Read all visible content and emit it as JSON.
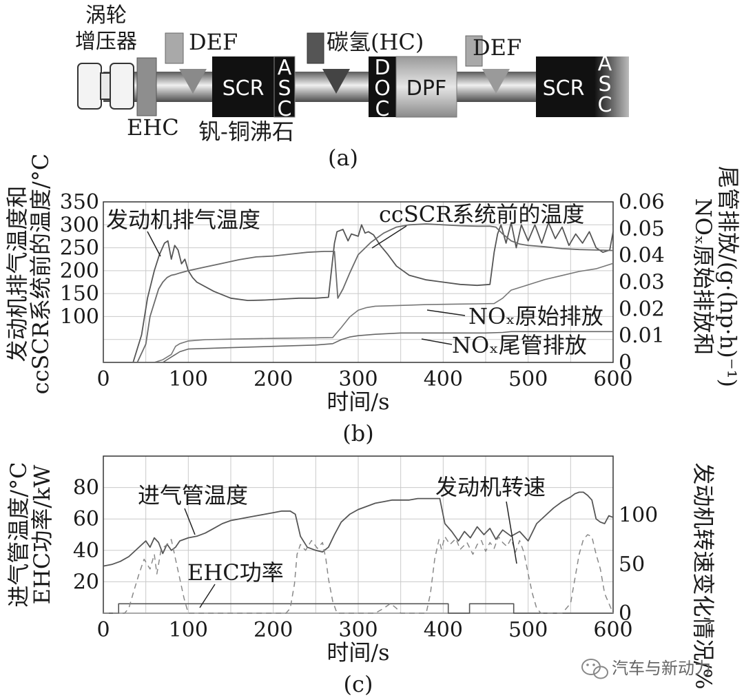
{
  "chart_data": [
    {
      "type": "diagram",
      "panel_label": "(a)",
      "labels": {
        "turbo": "涡轮\n增压器",
        "def1": "DEF",
        "hc": "碳氢(HC)",
        "def2": "DEF",
        "ehc": "EHC",
        "scr1": "SCR",
        "asc1": "ASC",
        "doc": "DOC",
        "dpf": "DPF",
        "scr2": "SCR",
        "asc2": "ASC",
        "catalyst": "钒-铜沸石"
      }
    },
    {
      "type": "line",
      "panel_label": "(b)",
      "xlabel": "时间/s",
      "ylabel_left": [
        "发动机排气温度和",
        "ccSCR系统前的温度/°C"
      ],
      "ylabel_right": [
        "NOₓ原始排放和",
        "尾管排放/(g·(hp·h)⁻¹)"
      ],
      "xlim": [
        0,
        600
      ],
      "ylim_left": [
        0,
        350
      ],
      "ylim_right": [
        0,
        0.06
      ],
      "xticks": [
        0,
        100,
        200,
        300,
        400,
        500,
        600
      ],
      "yticks_left": [
        100,
        150,
        200,
        250,
        300,
        350
      ],
      "yticks_right": [
        0,
        0.01,
        0.02,
        0.03,
        0.04,
        0.05,
        0.06
      ],
      "grid": true,
      "annotations": [
        "发动机排气温度",
        "ccSCR系统前的温度",
        "NOₓ原始排放",
        "NOₓ尾管排放"
      ],
      "series": [
        {
          "axis": "left",
          "x": [
            0,
            25,
            35,
            45,
            52,
            60,
            66,
            72,
            76,
            80,
            84,
            88,
            92,
            96,
            100,
            105,
            110,
            130,
            150,
            170,
            190,
            210,
            230,
            250,
            265,
            272,
            275,
            282,
            288,
            292,
            300,
            304,
            308,
            312,
            318,
            326,
            335,
            345,
            360,
            380,
            400,
            420,
            440,
            455,
            460,
            464,
            468,
            474,
            480,
            486,
            492,
            500,
            508,
            516,
            524,
            532,
            540,
            548,
            556,
            564,
            572,
            580,
            588,
            596,
            600
          ],
          "y": [
            0,
            0,
            0,
            60,
            140,
            200,
            235,
            260,
            265,
            225,
            255,
            245,
            215,
            225,
            200,
            185,
            175,
            155,
            140,
            135,
            136,
            138,
            140,
            140,
            142,
            260,
            285,
            290,
            265,
            280,
            275,
            300,
            282,
            285,
            278,
            255,
            235,
            210,
            190,
            180,
            175,
            170,
            168,
            170,
            240,
            280,
            300,
            260,
            305,
            250,
            300,
            265,
            300,
            260,
            305,
            270,
            295,
            255,
            280,
            260,
            285,
            250,
            240,
            245,
            285
          ]
        },
        {
          "axis": "left",
          "x": [
            0,
            40,
            50,
            55,
            60,
            65,
            70,
            75,
            80,
            85,
            90,
            100,
            120,
            140,
            160,
            180,
            200,
            220,
            240,
            260,
            272,
            276,
            282,
            290,
            300,
            315,
            330,
            345,
            360,
            380,
            400,
            420,
            440,
            455,
            462,
            470,
            480,
            490,
            500,
            520,
            540,
            560,
            580,
            600
          ],
          "y": [
            0,
            0,
            40,
            100,
            130,
            160,
            175,
            185,
            190,
            192,
            195,
            200,
            208,
            216,
            224,
            230,
            232,
            236,
            240,
            242,
            242,
            140,
            160,
            195,
            235,
            262,
            282,
            295,
            300,
            302,
            300,
            298,
            297,
            297,
            295,
            280,
            265,
            258,
            255,
            252,
            248,
            246,
            245,
            244
          ]
        },
        {
          "axis": "right",
          "x": [
            0,
            60,
            70,
            80,
            85,
            90,
            100,
            120,
            150,
            200,
            250,
            270,
            280,
            290,
            300,
            305,
            310,
            320,
            340,
            360,
            380,
            400,
            420,
            440,
            460,
            470,
            480,
            500,
            520,
            540,
            560,
            580,
            600
          ],
          "y": [
            0,
            0,
            0.001,
            0.003,
            0.006,
            0.007,
            0.008,
            0.0085,
            0.0087,
            0.009,
            0.0092,
            0.0093,
            0.013,
            0.017,
            0.0195,
            0.02,
            0.0205,
            0.021,
            0.0212,
            0.0214,
            0.0216,
            0.0217,
            0.0218,
            0.0219,
            0.022,
            0.024,
            0.027,
            0.029,
            0.031,
            0.0325,
            0.034,
            0.035,
            0.037
          ]
        },
        {
          "axis": "right",
          "x": [
            0,
            70,
            80,
            90,
            100,
            150,
            200,
            250,
            270,
            280,
            290,
            300,
            320,
            350,
            400,
            450,
            470,
            480,
            500,
            550,
            600
          ],
          "y": [
            0,
            0,
            0.002,
            0.004,
            0.005,
            0.0055,
            0.006,
            0.0065,
            0.007,
            0.0085,
            0.0095,
            0.01,
            0.0105,
            0.011,
            0.011,
            0.011,
            0.0112,
            0.0115,
            0.0115,
            0.0115,
            0.0115
          ]
        }
      ]
    },
    {
      "type": "line",
      "panel_label": "(c)",
      "xlabel": "时间/s",
      "ylabel_left": [
        "进气管温度/°C",
        "EHC功率/kW"
      ],
      "ylabel_right": [
        "发动机转速变化情况/%"
      ],
      "xlim": [
        0,
        600
      ],
      "ylim_left": [
        0,
        100
      ],
      "ylim_right": [
        0,
        160
      ],
      "xticks": [
        0,
        100,
        200,
        300,
        400,
        500,
        600
      ],
      "yticks_left": [
        20,
        40,
        60,
        80
      ],
      "yticks_right": [
        0,
        50,
        100
      ],
      "grid": true,
      "annotations": [
        "进气管温度",
        "发动机转速",
        "EHC功率"
      ],
      "series": [
        {
          "axis": "left",
          "style": "solid",
          "x": [
            0,
            10,
            20,
            30,
            40,
            50,
            55,
            60,
            65,
            70,
            75,
            80,
            85,
            90,
            100,
            110,
            120,
            130,
            140,
            150,
            160,
            170,
            180,
            190,
            200,
            210,
            220,
            226,
            232,
            240,
            250,
            258,
            265,
            272,
            280,
            290,
            300,
            310,
            320,
            330,
            340,
            350,
            360,
            370,
            380,
            390,
            396,
            402,
            410,
            418,
            425,
            432,
            440,
            448,
            455,
            462,
            470,
            480,
            490,
            500,
            510,
            520,
            530,
            540,
            550,
            555,
            560,
            565,
            570,
            575,
            580,
            585,
            590,
            595,
            600
          ],
          "y": [
            30,
            31,
            33,
            36,
            41,
            46,
            42,
            48,
            45,
            38,
            44,
            40,
            42,
            46,
            48,
            49,
            51,
            54,
            57,
            59,
            60,
            61,
            62,
            63,
            64,
            65,
            65,
            63,
            49,
            42,
            40,
            39,
            42,
            50,
            58,
            63,
            66,
            68,
            70,
            71,
            72,
            72,
            72,
            73,
            73,
            73,
            73,
            57,
            52,
            46,
            52,
            48,
            55,
            50,
            54,
            47,
            53,
            49,
            52,
            46,
            57,
            62,
            67,
            71,
            74,
            76,
            77,
            77,
            75,
            72,
            60,
            58,
            57,
            62,
            61
          ]
        },
        {
          "axis": "left",
          "style": "solid",
          "x": [
            0,
            400,
            405,
            430,
            433,
            480,
            483,
            600
          ],
          "y": [
            0,
            0,
            0,
            0,
            0,
            0,
            0,
            0
          ]
        },
        {
          "axis": "left",
          "style": "step",
          "x": [
            0,
            18,
            18,
            406,
            406,
            431,
            431,
            483,
            483,
            600
          ],
          "y": [
            0,
            0,
            6,
            6,
            0,
            0,
            6,
            6,
            0,
            0
          ]
        },
        {
          "axis": "right",
          "style": "dashed",
          "x": [
            0,
            18,
            25,
            30,
            35,
            42,
            48,
            55,
            60,
            63,
            68,
            75,
            80,
            85,
            90,
            95,
            100,
            102,
            108,
            120,
            140,
            160,
            180,
            200,
            215,
            220,
            225,
            228,
            232,
            238,
            245,
            252,
            258,
            262,
            265,
            270,
            275,
            280,
            290,
            300,
            310,
            320,
            330,
            338,
            345,
            350,
            360,
            380,
            385,
            390,
            395,
            398,
            402,
            408,
            415,
            420,
            428,
            435,
            440,
            445,
            450,
            455,
            460,
            465,
            470,
            475,
            480,
            485,
            490,
            495,
            500,
            505,
            510,
            515,
            520,
            525,
            530,
            540,
            550,
            555,
            560,
            565,
            570,
            575,
            580,
            585,
            590,
            600
          ],
          "y": [
            0,
            0,
            0,
            5,
            20,
            40,
            55,
            45,
            60,
            40,
            65,
            70,
            75,
            55,
            35,
            15,
            0,
            0,
            0,
            0,
            0,
            0,
            0,
            0,
            0,
            5,
            30,
            60,
            70,
            64,
            74,
            66,
            72,
            55,
            35,
            12,
            0,
            0,
            0,
            0,
            0,
            0,
            5,
            10,
            5,
            0,
            0,
            0,
            20,
            55,
            75,
            65,
            78,
            70,
            76,
            65,
            72,
            60,
            70,
            74,
            63,
            72,
            66,
            78,
            72,
            68,
            76,
            62,
            74,
            62,
            40,
            20,
            5,
            0,
            0,
            0,
            0,
            0,
            10,
            35,
            60,
            75,
            80,
            78,
            60,
            45,
            20,
            0
          ]
        }
      ]
    }
  ],
  "footer": {
    "brand": "汽车与新动力",
    "icon": "wechat-icon"
  }
}
